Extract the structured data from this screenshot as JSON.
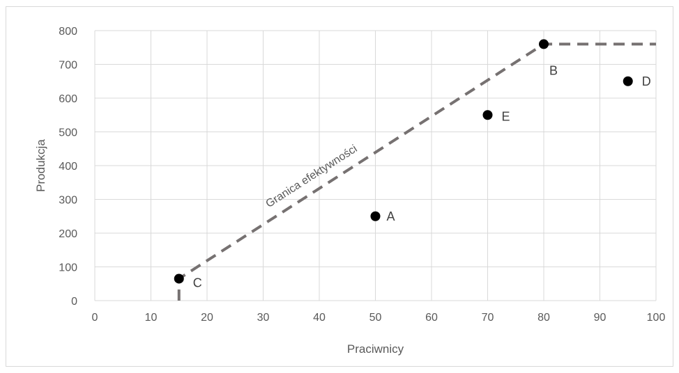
{
  "chart_data": {
    "type": "scatter",
    "title": "",
    "xlabel": "Praciwnicy",
    "ylabel": "Produkcja",
    "xlim": [
      0,
      100
    ],
    "ylim": [
      0,
      800
    ],
    "xticks": [
      0,
      10,
      20,
      30,
      40,
      50,
      60,
      70,
      80,
      90,
      100
    ],
    "yticks": [
      0,
      100,
      200,
      300,
      400,
      500,
      600,
      700,
      800
    ],
    "grid": true,
    "points": [
      {
        "label": "A",
        "x": 50,
        "y": 250
      },
      {
        "label": "B",
        "x": 80,
        "y": 760
      },
      {
        "label": "C",
        "x": 15,
        "y": 65
      },
      {
        "label": "D",
        "x": 95,
        "y": 650
      },
      {
        "label": "E",
        "x": 70,
        "y": 550
      }
    ],
    "frontier": {
      "label": "Granica efektywności",
      "x": [
        15,
        15,
        80,
        100
      ],
      "y": [
        0,
        65,
        760,
        760
      ],
      "style": "dashed",
      "color": "#767171"
    },
    "colors": {
      "point": "#000000",
      "frontier": "#767171",
      "grid": "#d9d9d9",
      "text": "#595959"
    }
  }
}
